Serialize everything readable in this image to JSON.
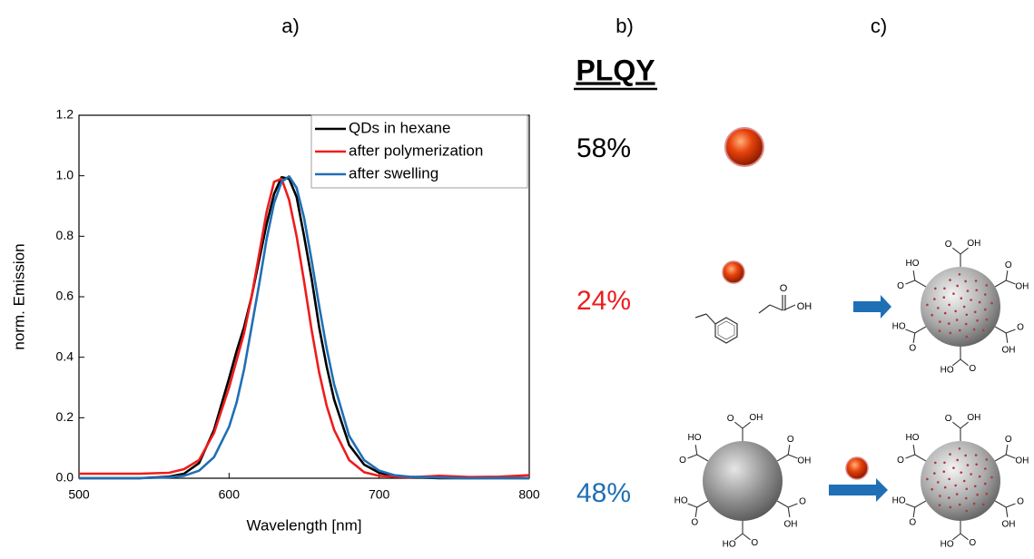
{
  "chart_data": {
    "type": "line",
    "xlabel": "Wavelength [nm]",
    "ylabel": "norm. Emission",
    "x": [
      500,
      520,
      540,
      560,
      570,
      580,
      590,
      600,
      605,
      610,
      615,
      620,
      625,
      630,
      635,
      640,
      645,
      650,
      655,
      660,
      665,
      670,
      680,
      690,
      700,
      710,
      720,
      740,
      760,
      780,
      800
    ],
    "series": [
      {
        "name": "QDs in hexane",
        "color": "#000000",
        "values": [
          0,
          0,
          0,
          0.005,
          0.015,
          0.05,
          0.16,
          0.33,
          0.42,
          0.5,
          0.6,
          0.72,
          0.84,
          0.94,
          0.995,
          0.99,
          0.93,
          0.8,
          0.66,
          0.5,
          0.37,
          0.26,
          0.11,
          0.045,
          0.018,
          0.008,
          0.004,
          0,
          0,
          0,
          0
        ]
      },
      {
        "name": "after polymerization",
        "color": "#ee1c1c",
        "values": [
          0.015,
          0.015,
          0.015,
          0.018,
          0.03,
          0.06,
          0.15,
          0.3,
          0.39,
          0.48,
          0.6,
          0.74,
          0.88,
          0.98,
          0.99,
          0.92,
          0.8,
          0.65,
          0.49,
          0.35,
          0.24,
          0.16,
          0.06,
          0.02,
          0.008,
          0.005,
          0.003,
          0.008,
          0.004,
          0.005,
          0.01
        ]
      },
      {
        "name": "after swelling",
        "color": "#1f6fb5",
        "values": [
          0,
          0,
          0,
          0.003,
          0.008,
          0.025,
          0.07,
          0.17,
          0.25,
          0.36,
          0.5,
          0.64,
          0.79,
          0.91,
          0.98,
          0.998,
          0.96,
          0.86,
          0.72,
          0.57,
          0.43,
          0.31,
          0.14,
          0.06,
          0.025,
          0.01,
          0.005,
          0.002,
          0,
          0.001,
          0
        ]
      }
    ],
    "xlim": [
      500,
      800
    ],
    "ylim": [
      0,
      1.2
    ],
    "xticks": [
      500,
      600,
      700,
      800
    ],
    "yticks": [
      {
        "value": 0,
        "label": "0.0"
      },
      {
        "value": 0.2,
        "label": "0.2"
      },
      {
        "value": 0.4,
        "label": "0.4"
      },
      {
        "value": 0.6,
        "label": "0.6"
      },
      {
        "value": 0.8,
        "label": "0.8"
      },
      {
        "value": 1.0,
        "label": "1.0"
      },
      {
        "value": 1.2,
        "label": "1.2"
      }
    ],
    "legend": "upper right",
    "grid": false
  },
  "panels": [
    "a)",
    "b)",
    "c)"
  ],
  "plqy": {
    "title": "PLQY",
    "entries": [
      {
        "label": "58%",
        "color": "#000000"
      },
      {
        "label": "24%",
        "color": "#ee1c1c"
      },
      {
        "label": "48%",
        "color": "#1f6fb5"
      }
    ]
  },
  "diagram": {
    "labels": {
      "carbonyl": "O",
      "hydroxyl": "OH",
      "hydroxyl_left": "HO"
    }
  }
}
